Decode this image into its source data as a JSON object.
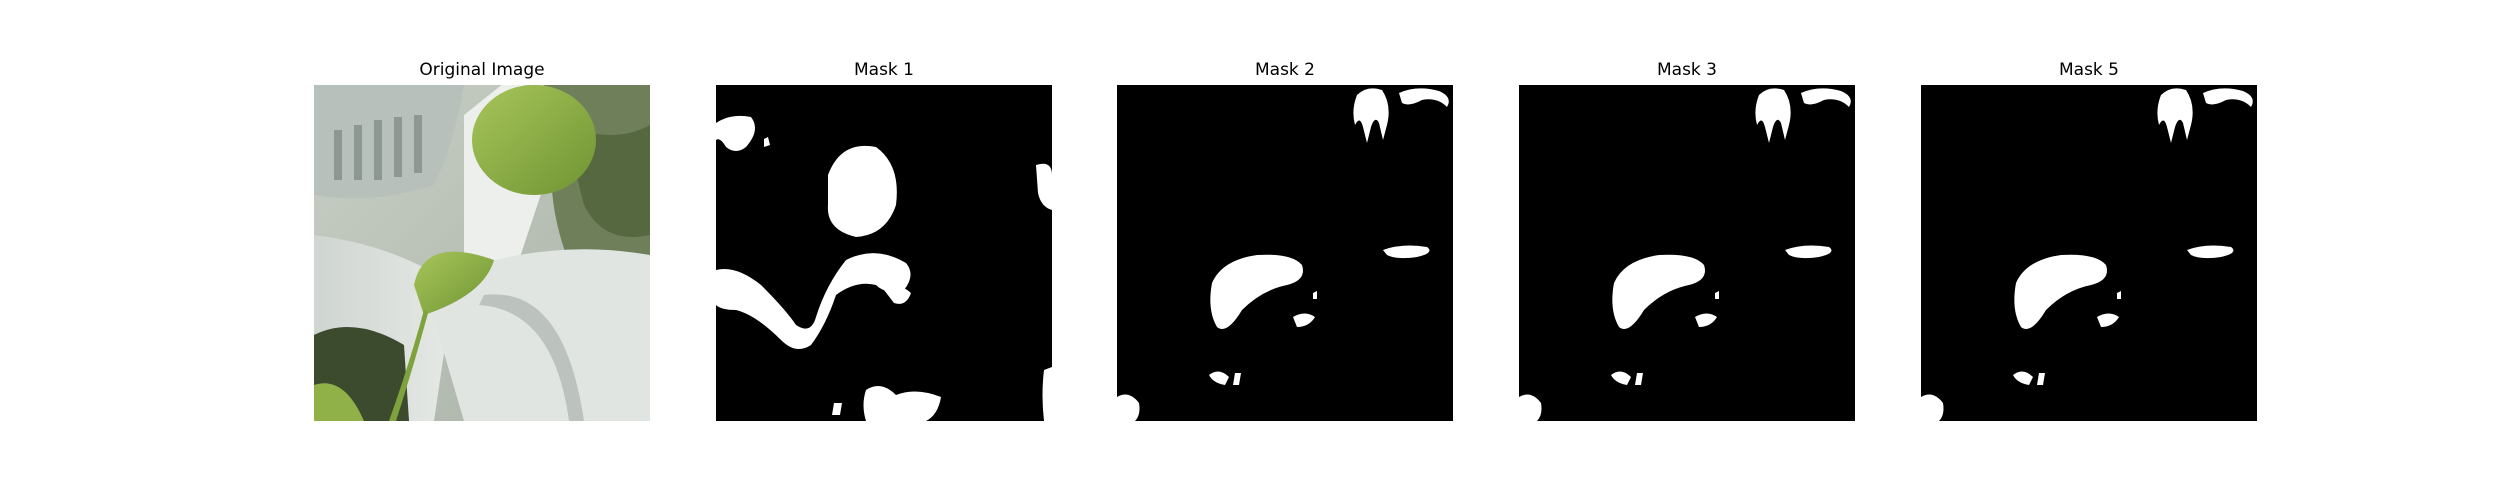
{
  "figure": {
    "panels": [
      {
        "id": "original",
        "title": "Original Image",
        "kind": "photo"
      },
      {
        "id": "mask1",
        "title": "Mask 1",
        "kind": "mask"
      },
      {
        "id": "mask2",
        "title": "Mask 2",
        "kind": "mask"
      },
      {
        "id": "mask3",
        "title": "Mask 3",
        "kind": "mask"
      },
      {
        "id": "mask5",
        "title": "Mask 5",
        "kind": "mask"
      }
    ]
  },
  "colors": {
    "background": "#ffffff",
    "mask_background": "#000000",
    "mask_foreground": "#ffffff",
    "leaf_green": "#8fb045",
    "pot_white": "#dfe3df"
  }
}
